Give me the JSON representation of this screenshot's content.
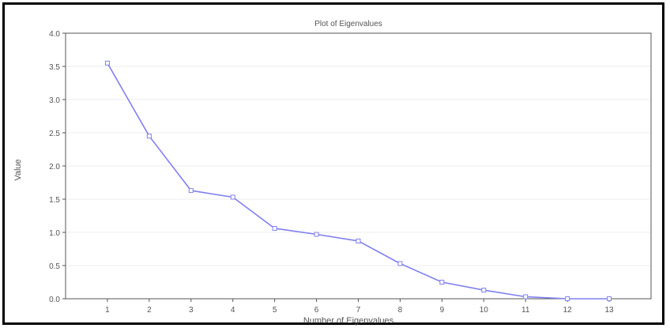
{
  "chart_data": {
    "type": "line",
    "title": "Plot of Eigenvalues",
    "xlabel": "Number of Eigenvalues",
    "ylabel": "Value",
    "x": [
      1,
      2,
      3,
      4,
      5,
      6,
      7,
      8,
      9,
      10,
      11,
      12,
      13
    ],
    "x_ticks": [
      "1",
      "2",
      "3",
      "4",
      "5",
      "6",
      "7",
      "8",
      "9",
      "10",
      "11",
      "12",
      "13"
    ],
    "y_ticks": [
      "0.0",
      "0.5",
      "1.0",
      "1.5",
      "2.0",
      "2.5",
      "3.0",
      "3.5",
      "4.0"
    ],
    "ylim": [
      0,
      4
    ],
    "xlim": [
      0,
      14
    ],
    "grid": true,
    "legend": "none",
    "series": [
      {
        "values": [
          3.55,
          2.45,
          1.63,
          1.53,
          1.06,
          0.97,
          0.87,
          0.53,
          0.25,
          0.13,
          0.03,
          0.0,
          0.0
        ],
        "color": "#8080f0"
      }
    ]
  }
}
